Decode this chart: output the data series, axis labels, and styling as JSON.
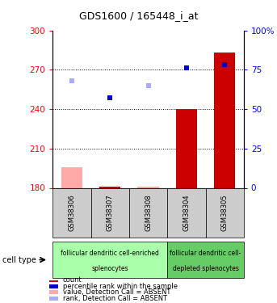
{
  "title": "GDS1600 / 165448_i_at",
  "samples": [
    "GSM38306",
    "GSM38307",
    "GSM38308",
    "GSM38304",
    "GSM38305"
  ],
  "ylim_left": [
    180,
    300
  ],
  "ylim_right": [
    0,
    100
  ],
  "yticks_left": [
    180,
    210,
    240,
    270,
    300
  ],
  "yticks_right": [
    0,
    25,
    50,
    75,
    100
  ],
  "bar_values": [
    196,
    181,
    181,
    240,
    283
  ],
  "bar_absent": [
    true,
    false,
    true,
    false,
    false
  ],
  "rank_values_pct": [
    null,
    57,
    null,
    76,
    78
  ],
  "rank_absent_pct": [
    68,
    null,
    65,
    null,
    null
  ],
  "bar_color_present": "#cc0000",
  "bar_color_absent": "#ffaaaa",
  "rank_color_present": "#0000cc",
  "rank_color_absent": "#aaaaff",
  "bar_base": 180,
  "group1_color": "#aaffaa",
  "group2_color": "#66cc66",
  "group1_label_line1": "follicular dendritic cell-enriched",
  "group1_label_line2": "splenocytes",
  "group2_label_line1": "follicular dendritic cell-",
  "group2_label_line2": "depleted splenocytes",
  "sample_bg_color": "#cccccc",
  "cell_type_label": "cell type",
  "legend_items": [
    {
      "color": "#cc0000",
      "label": "count"
    },
    {
      "color": "#0000cc",
      "label": "percentile rank within the sample"
    },
    {
      "color": "#ffaaaa",
      "label": "value, Detection Call = ABSENT"
    },
    {
      "color": "#aaaaff",
      "label": "rank, Detection Call = ABSENT"
    }
  ]
}
